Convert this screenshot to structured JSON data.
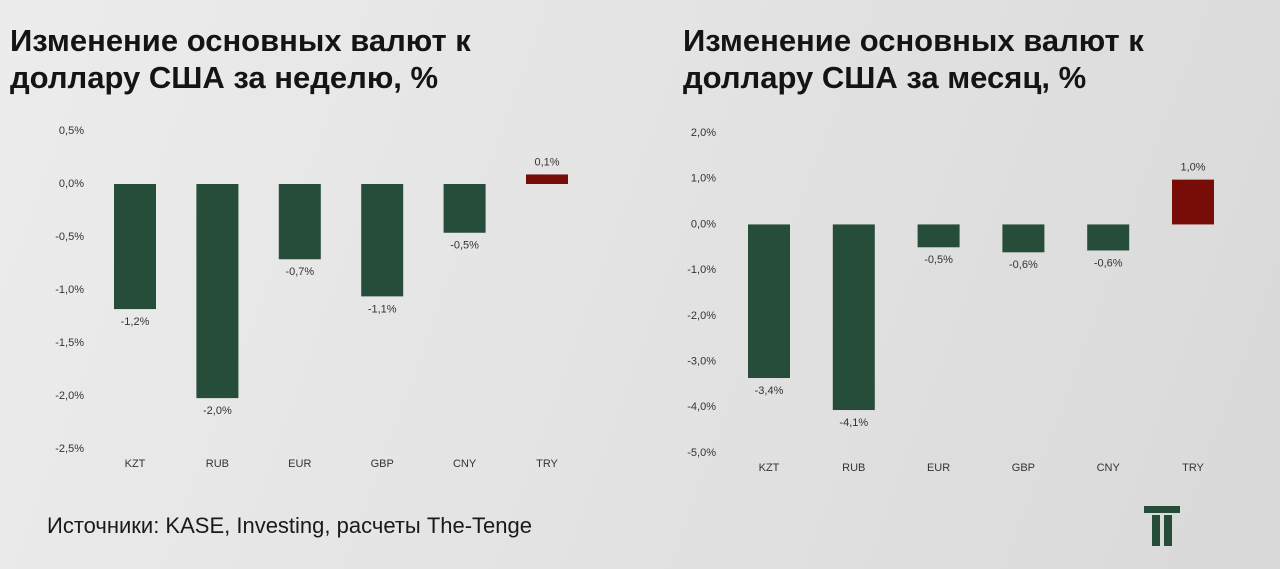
{
  "chart_data": [
    {
      "type": "bar",
      "title": "Изменение основных валют к доллару США за неделю, %",
      "categories": [
        "KZT",
        "RUB",
        "EUR",
        "GBP",
        "CNY",
        "TRY"
      ],
      "values": [
        -1.18,
        -2.02,
        -0.71,
        -1.06,
        -0.46,
        0.09
      ],
      "value_labels": [
        "-1,2%",
        "-2,0%",
        "-0,7%",
        "-1,1%",
        "-0,5%",
        "0,1%"
      ],
      "colors": [
        "#264d3a",
        "#264d3a",
        "#264d3a",
        "#264d3a",
        "#264d3a",
        "#780d08"
      ],
      "ylim": [
        -2.5,
        0.5
      ],
      "yticks": [
        {
          "value": 0.5,
          "label": "0,5%"
        },
        {
          "value": 0,
          "label": "0,0%"
        },
        {
          "value": -0.5,
          "label": "-0,5%"
        },
        {
          "value": -1,
          "label": "-1,0%"
        },
        {
          "value": -1.5,
          "label": "-1,5%"
        },
        {
          "value": -2,
          "label": "-2,0%"
        },
        {
          "value": -2.5,
          "label": "-2,5%"
        }
      ]
    },
    {
      "type": "bar",
      "title": "Изменение основных валют к доллару США за месяц, %",
      "categories": [
        "KZT",
        "RUB",
        "EUR",
        "GBP",
        "CNY",
        "TRY"
      ],
      "values": [
        -3.36,
        -4.06,
        -0.5,
        -0.61,
        -0.57,
        0.98
      ],
      "value_labels": [
        "-3,4%",
        "-4,1%",
        "-0,5%",
        "-0,6%",
        "-0,6%",
        "1,0%"
      ],
      "colors": [
        "#264d3a",
        "#264d3a",
        "#264d3a",
        "#264d3a",
        "#264d3a",
        "#780d08"
      ],
      "ylim": [
        -5,
        2
      ],
      "yticks": [
        {
          "value": 2,
          "label": "2,0%"
        },
        {
          "value": 1,
          "label": "1,0%"
        },
        {
          "value": 0,
          "label": "0,0%"
        },
        {
          "value": -1,
          "label": "-1,0%"
        },
        {
          "value": -2,
          "label": "-2,0%"
        },
        {
          "value": -3,
          "label": "-3,0%"
        },
        {
          "value": -4,
          "label": "-4,0%"
        },
        {
          "value": -5,
          "label": "-5,0%"
        }
      ]
    }
  ],
  "source": "Источники: KASE, Investing, расчеты The-Tenge"
}
